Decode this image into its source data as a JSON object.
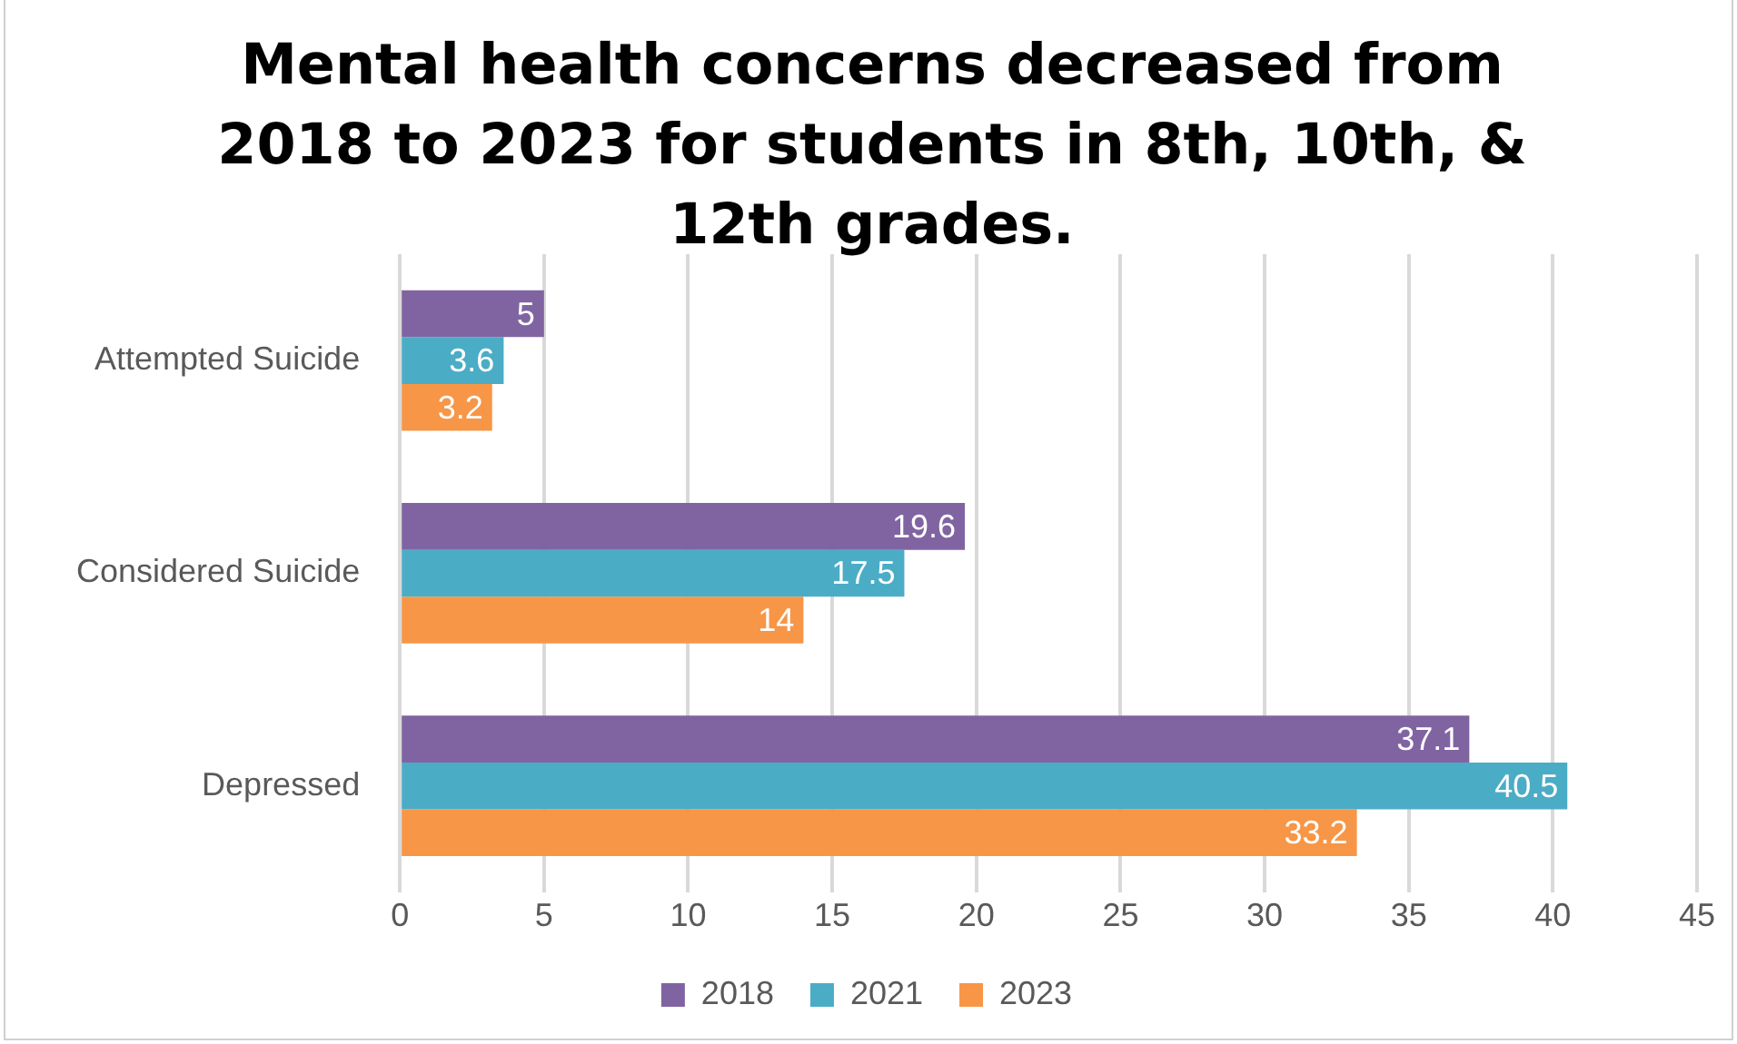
{
  "chart_data": {
    "type": "bar",
    "orientation": "horizontal",
    "title": "Mental health concerns decreased from 2018 to 2023 for students in 8th, 10th, & 12th grades.",
    "categories": [
      "Attempted Suicide",
      "Considered Suicide",
      "Depressed"
    ],
    "series": [
      {
        "name": "2018",
        "color": "#8064a2",
        "values": [
          5,
          19.6,
          37.1
        ]
      },
      {
        "name": "2021",
        "color": "#4bacc6",
        "values": [
          3.6,
          17.5,
          40.5
        ]
      },
      {
        "name": "2023",
        "color": "#f79646",
        "values": [
          3.2,
          14,
          33.2
        ]
      }
    ],
    "xlim": [
      0,
      45
    ],
    "xticks": [
      0,
      5,
      10,
      15,
      20,
      25,
      30,
      35,
      40,
      45
    ],
    "grid": "x",
    "legend": "bottom",
    "data_labels": true
  }
}
